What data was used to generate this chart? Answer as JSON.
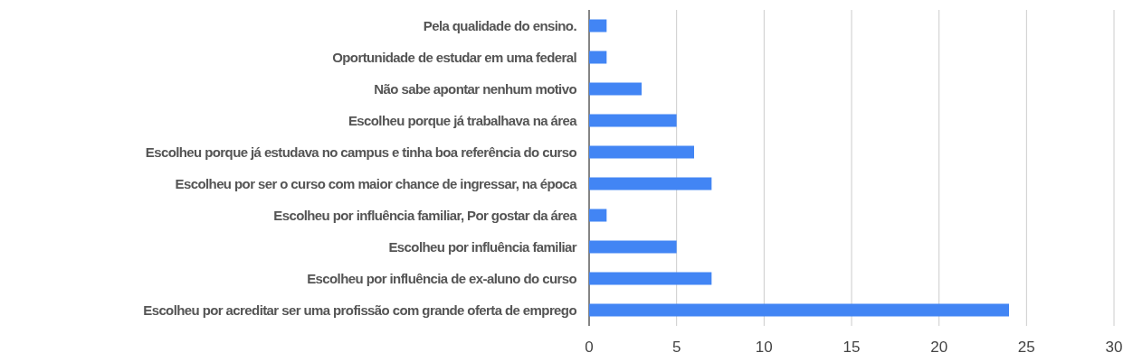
{
  "chart_data": {
    "type": "bar",
    "orientation": "horizontal",
    "categories": [
      "Pela qualidade do ensino.",
      "Oportunidade de estudar em uma federal",
      "Não sabe apontar nenhum motivo",
      "Escolheu porque já trabalhava na área",
      "Escolheu porque já estudava no campus e tinha boa referência do curso",
      "Escolheu por ser o curso com maior chance de ingressar, na época",
      "Escolheu por influência familiar, Por gostar da área",
      "Escolheu por influência familiar",
      "Escolheu por influência de ex-aluno do curso",
      "Escolheu por acreditar ser uma profissão com grande oferta de emprego"
    ],
    "values": [
      1,
      1,
      3,
      5,
      6,
      7,
      1,
      5,
      7,
      24
    ],
    "color": "#4285f4",
    "xlim": [
      0,
      30
    ],
    "xticks": [
      0,
      5,
      10,
      15,
      20,
      25,
      30
    ],
    "grid": "x"
  }
}
